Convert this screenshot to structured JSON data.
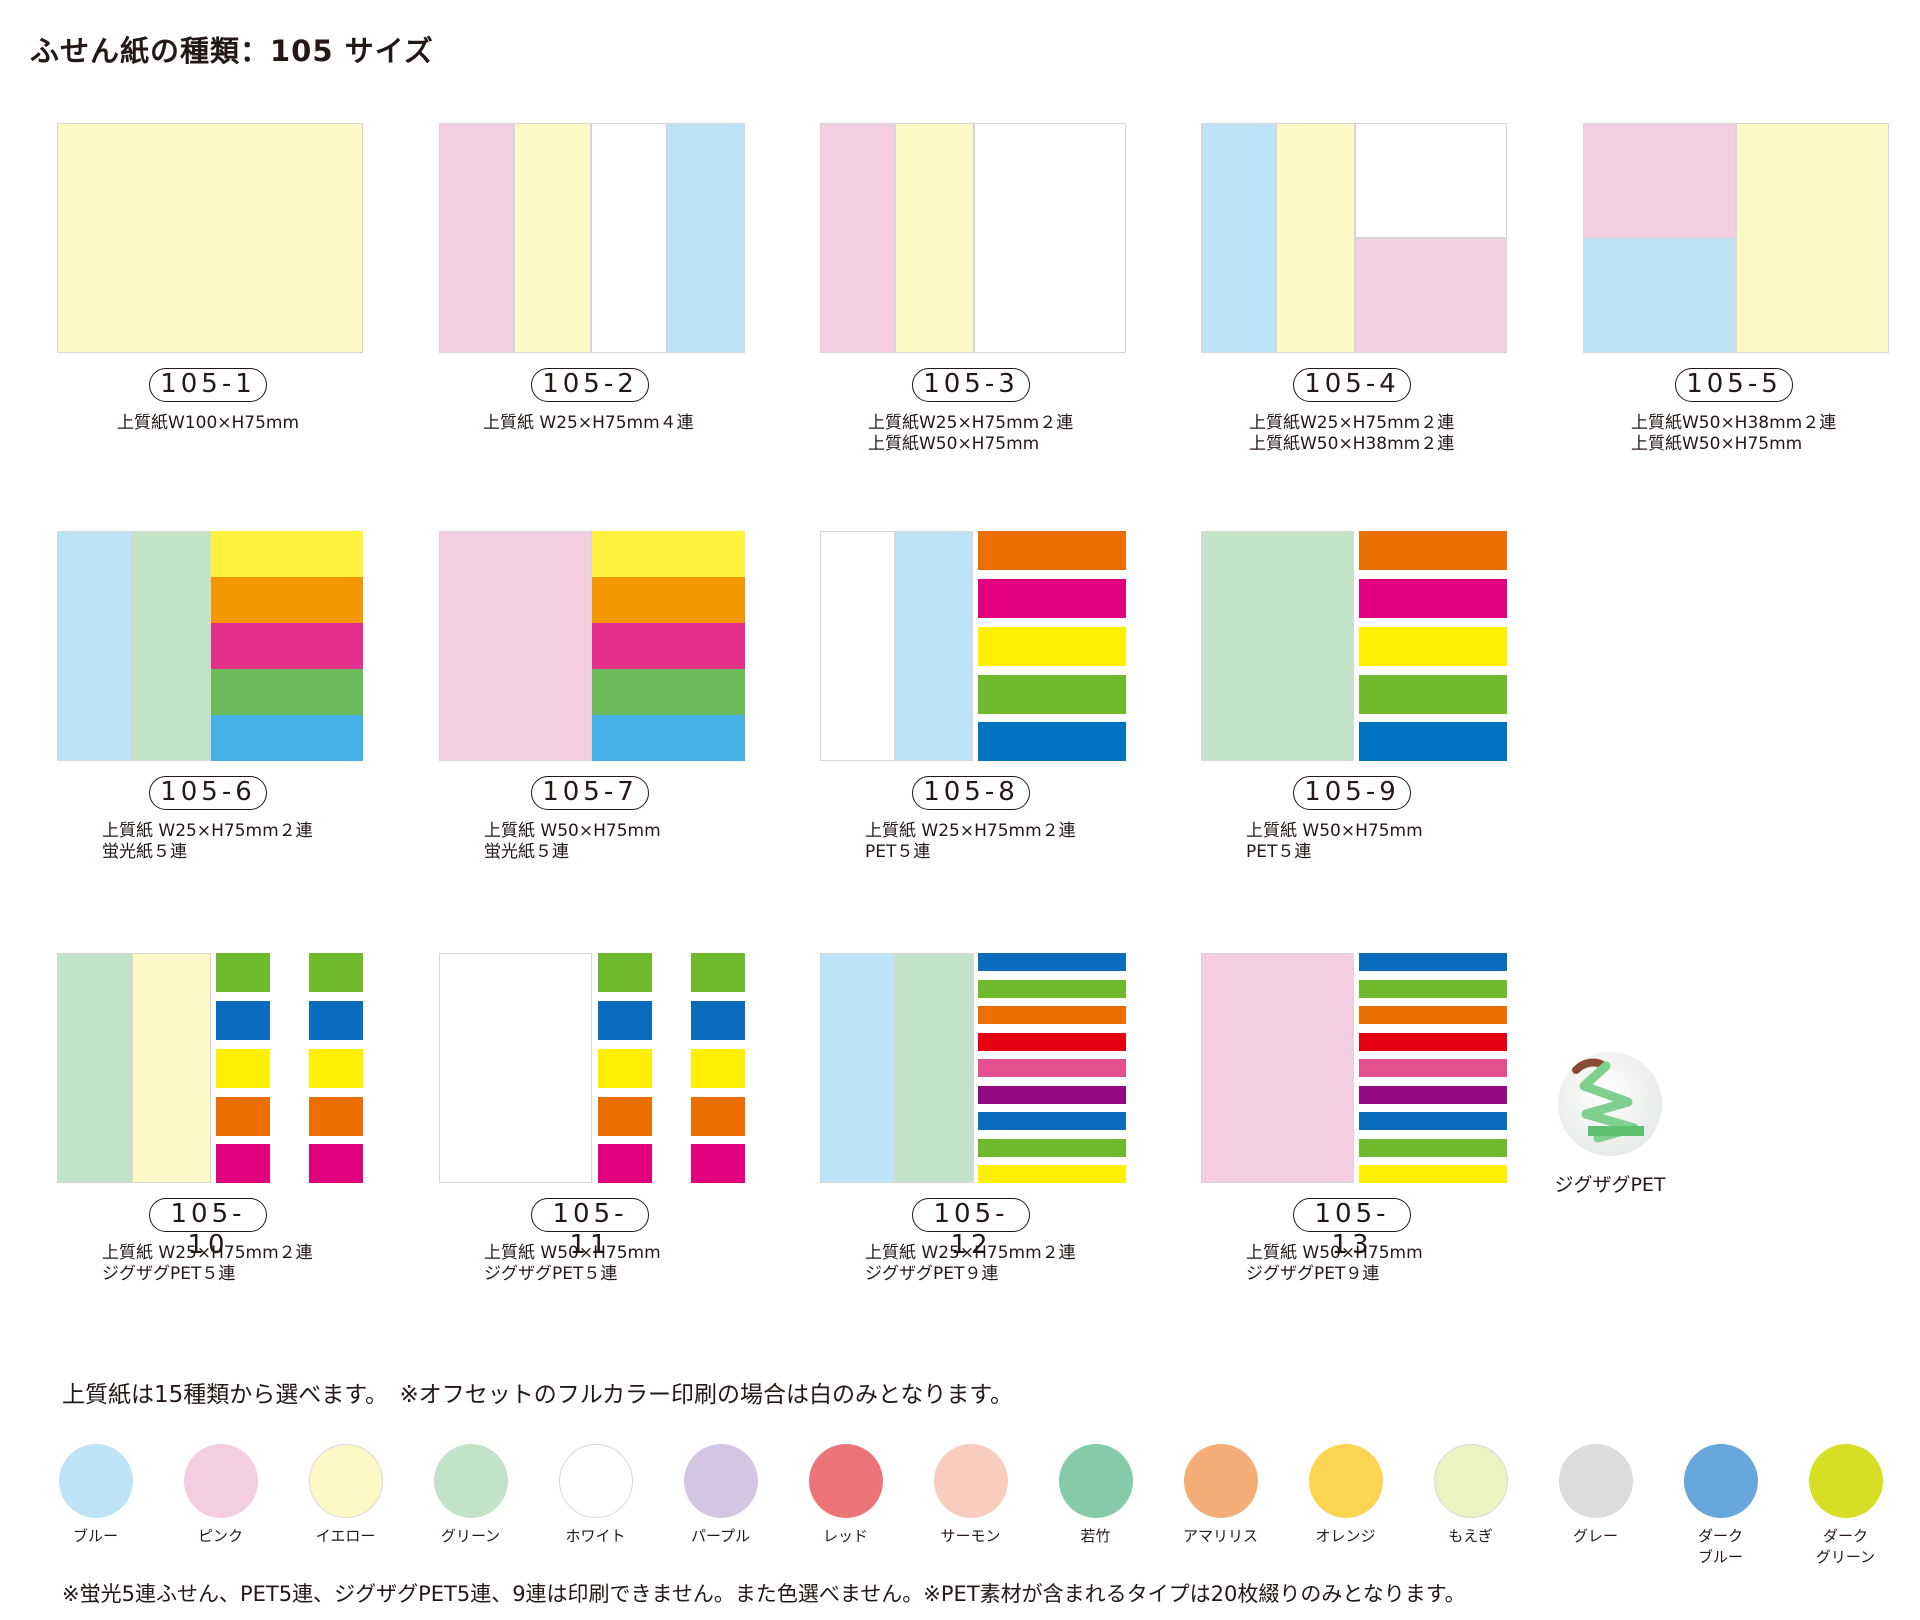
{
  "title": "ふせん紙の種類：105 サイズ",
  "items": [
    {
      "code": "105-1",
      "spec": [
        "上質紙W100×H75mm"
      ]
    },
    {
      "code": "105-2",
      "spec": [
        "上質紙 W25×H75mm４連"
      ]
    },
    {
      "code": "105-3",
      "spec": [
        "上質紙W25×H75mm２連",
        "上質紙W50×H75mm"
      ]
    },
    {
      "code": "105-4",
      "spec": [
        "上質紙W25×H75mm２連",
        "上質紙W50×H38mm２連"
      ]
    },
    {
      "code": "105-5",
      "spec": [
        "上質紙W50×H38mm２連",
        "上質紙W50×H75mm"
      ]
    },
    {
      "code": "105-6",
      "spec": [
        "上質紙 W25×H75mm２連",
        "蛍光紙５連"
      ]
    },
    {
      "code": "105-7",
      "spec": [
        "上質紙 W50×H75mm",
        "蛍光紙５連"
      ]
    },
    {
      "code": "105-8",
      "spec": [
        "上質紙 W25×H75mm２連",
        "PET５連"
      ]
    },
    {
      "code": "105-9",
      "spec": [
        "上質紙 W50×H75mm",
        "PET５連"
      ]
    },
    {
      "code": "105-10",
      "spec": [
        "上質紙 W25×H75mm２連",
        "ジグザグPET５連"
      ]
    },
    {
      "code": "105-11",
      "spec": [
        "上質紙 W50×H75mm",
        "ジグザグPET５連"
      ]
    },
    {
      "code": "105-12",
      "spec": [
        "上質紙 W25×H75mm２連",
        "ジグザグPET９連"
      ]
    },
    {
      "code": "105-13",
      "spec": [
        "上質紙 W50×H75mm",
        "ジグザグPET９連"
      ]
    }
  ],
  "zigzag": {
    "caption": "ジグザグPET",
    "icon": "zigzag-pet-photo"
  },
  "note1": "上質紙は15種類から選べます。　※オフセットのフルカラー印刷の場合は白のみとなります。",
  "colors": [
    {
      "name": "ブルー",
      "color": "#bde3f7"
    },
    {
      "name": "ピンク",
      "color": "#f5cde0"
    },
    {
      "name": "イエロー",
      "color": "#fef8c6"
    },
    {
      "name": "グリーン",
      "color": "#c2e3c8"
    },
    {
      "name": "ホワイト",
      "color": "#ffffff"
    },
    {
      "name": "パープル",
      "color": "#d3c6e2"
    },
    {
      "name": "レッド",
      "color": "#ec7477"
    },
    {
      "name": "サーモン",
      "color": "#f8cdc0"
    },
    {
      "name": "若竹",
      "color": "#86cba9"
    },
    {
      "name": "アマリリス",
      "color": "#f4ad77"
    },
    {
      "name": "オレンジ",
      "color": "#fbd551"
    },
    {
      "name": "もえぎ",
      "color": "#ecf2c0"
    },
    {
      "name": "グレー",
      "color": "#dcdcdc"
    },
    {
      "name": "ダーク\nブルー",
      "color": "#67a7db"
    },
    {
      "name": "ダーク\nグリーン",
      "color": "#d6df24"
    }
  ],
  "note2": "※蛍光5連ふせん、PET5連、ジグザグPET5連、9連は印刷できません。また色選べません。※PET素材が含まれるタイプは20枚綴りのみとなります。"
}
